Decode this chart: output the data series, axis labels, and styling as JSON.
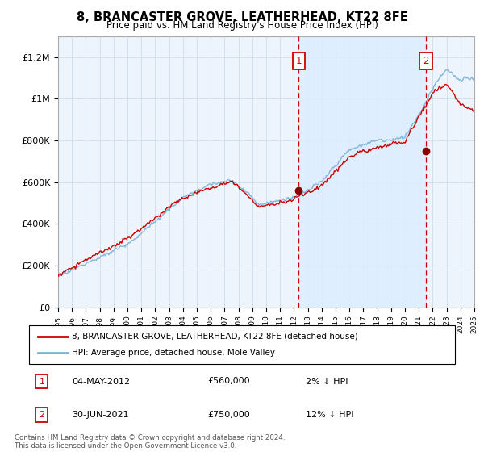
{
  "title": "8, BRANCASTER GROVE, LEATHERHEAD, KT22 8FE",
  "subtitle": "Price paid vs. HM Land Registry's House Price Index (HPI)",
  "legend_line1": "8, BRANCASTER GROVE, LEATHERHEAD, KT22 8FE (detached house)",
  "legend_line2": "HPI: Average price, detached house, Mole Valley",
  "annotation1_label": "1",
  "annotation1_date": "04-MAY-2012",
  "annotation1_price": "£560,000",
  "annotation1_hpi": "2% ↓ HPI",
  "annotation1_year": 2012.35,
  "annotation1_value": 560000,
  "annotation2_label": "2",
  "annotation2_date": "30-JUN-2021",
  "annotation2_price": "£750,000",
  "annotation2_hpi": "12% ↓ HPI",
  "annotation2_year": 2021.5,
  "annotation2_value": 750000,
  "footer": "Contains HM Land Registry data © Crown copyright and database right 2024.\nThis data is licensed under the Open Government Licence v3.0.",
  "hpi_color": "#7ab4d8",
  "price_color": "#cc0000",
  "fill_color": "#ddeeff",
  "background_color": "#eef4fb",
  "grid_color": "#c8d8e8",
  "ylim": [
    0,
    1300000
  ],
  "yticks": [
    0,
    200000,
    400000,
    600000,
    800000,
    1000000,
    1200000
  ],
  "ytick_labels": [
    "£0",
    "£200K",
    "£400K",
    "£600K",
    "£800K",
    "£1M",
    "£1.2M"
  ],
  "xstart": 1995,
  "xend": 2025
}
